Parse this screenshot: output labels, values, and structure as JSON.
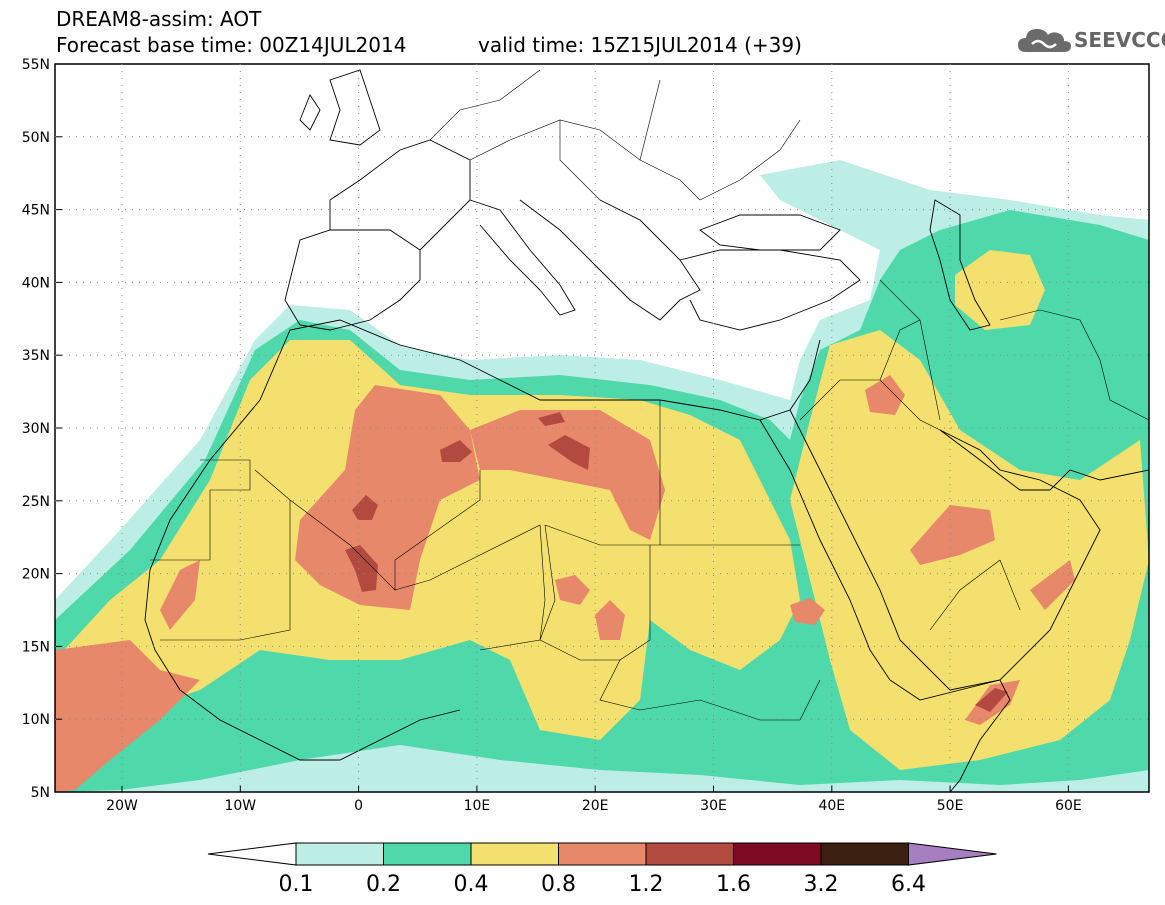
{
  "header": {
    "title": "DREAM8-assim: AOT",
    "base_time": "Forecast base time: 00Z14JUL2014",
    "valid_time": "valid time: 15Z15JUL2014 (+39)"
  },
  "logo": {
    "text": "SEEVCCC",
    "icon": "cloud-icon"
  },
  "map": {
    "lat_labels": [
      "55N",
      "50N",
      "45N",
      "40N",
      "35N",
      "30N",
      "25N",
      "20N",
      "15N",
      "10N",
      "5N"
    ],
    "lon_labels": [
      "20W",
      "10W",
      "0",
      "10E",
      "20E",
      "30E",
      "40E",
      "50E",
      "60E"
    ]
  },
  "colorbar": {
    "colors": [
      "#ffffff",
      "#bdeee6",
      "#4fd8aa",
      "#f4e06e",
      "#e8886a",
      "#b34a3f",
      "#7d0b24",
      "#3b1f10",
      "#a57fc0"
    ],
    "labels": [
      "0.1",
      "0.2",
      "0.4",
      "0.8",
      "1.2",
      "1.6",
      "3.2",
      "6.4"
    ]
  }
}
